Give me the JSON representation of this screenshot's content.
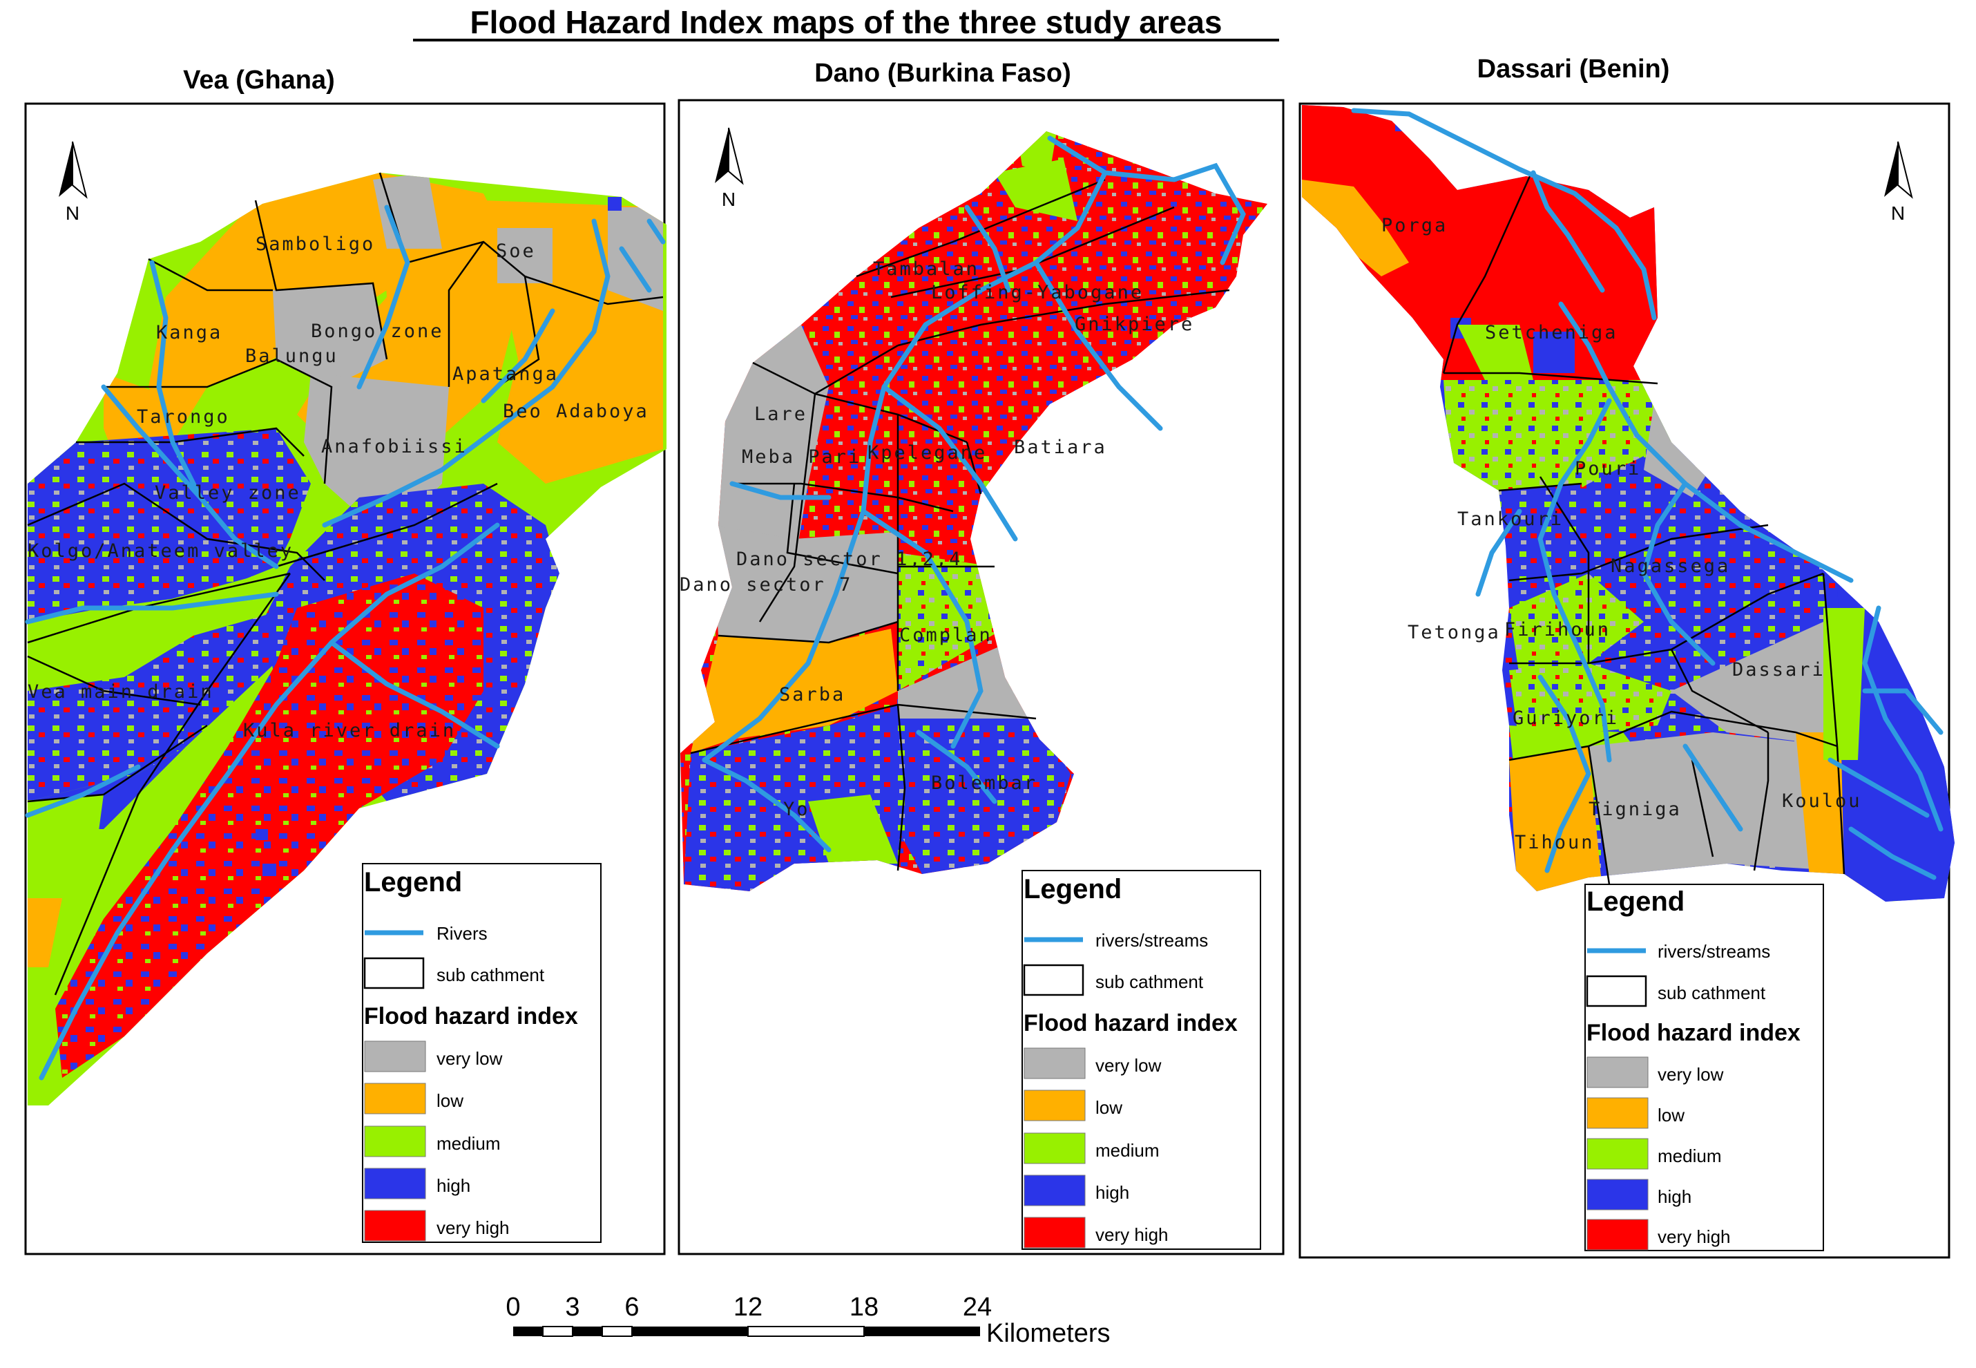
{
  "title": "Flood Hazard Index maps of the three study areas",
  "colors": {
    "very_low": "#b3b3b3",
    "low": "#ffb000",
    "medium": "#98f000",
    "high": "#2b35e8",
    "very_high": "#ff0000",
    "river": "#2f9be0"
  },
  "hazard_classes": [
    "very low",
    "low",
    "medium",
    "high",
    "very high"
  ],
  "north_label": "N",
  "maps": [
    {
      "area": "Vea (Ghana)",
      "legend": {
        "heading": "Legend",
        "line_label": "Rivers",
        "polygon_label": "sub cathment",
        "index_heading": "Flood hazard index"
      },
      "places": [
        "Samboligo",
        "Soe",
        "Kanga",
        "Bongo zone",
        "Balungu",
        "Apatanga",
        "Tarongo",
        "Beo Adaboya",
        "Anafobiissi",
        "Valley zone",
        "Kolgo/Anateem valley",
        "Vea main drain",
        "Kula river drain"
      ]
    },
    {
      "area": "Dano (Burkina Faso)",
      "legend": {
        "heading": "Legend",
        "line_label": "rivers/streams",
        "polygon_label": "sub cathment",
        "index_heading": "Flood hazard index"
      },
      "places": [
        "Tambalan",
        "Loffing-Yabogane",
        "Gnikpiere",
        "Lare",
        "Meba Pari",
        "Kpelegane",
        "Batiara",
        "Dano sector 1,2,4",
        "Dano sector 7",
        "Complan",
        "Sarba",
        "Bolembar",
        "Yo"
      ]
    },
    {
      "area": "Dassari (Benin)",
      "legend": {
        "heading": "Legend",
        "line_label": "rivers/streams",
        "polygon_label": "sub cathment",
        "index_heading": "Flood hazard index"
      },
      "places": [
        "Porga",
        "Setcheniga",
        "Pouri",
        "Tankouri",
        "Nagassega",
        "Tetonga",
        "Firihoun",
        "Dassari",
        "Guriyori",
        "Tigniga",
        "Koulou",
        "Tihoun"
      ]
    }
  ],
  "scale_bar": {
    "ticks": [
      "0",
      "3",
      "6",
      "12",
      "18",
      "24"
    ],
    "unit": "Kilometers"
  }
}
